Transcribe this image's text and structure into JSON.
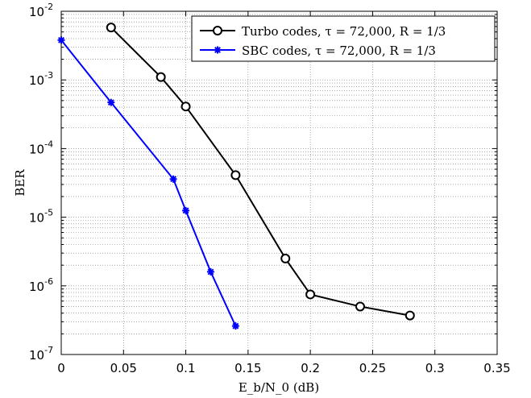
{
  "chart_data": {
    "type": "line",
    "title": "",
    "xlabel": "E_b/N_0 (dB)",
    "ylabel": "BER",
    "xscale": "linear",
    "yscale": "log",
    "xlim": [
      0,
      0.35
    ],
    "ylim": [
      1e-07,
      0.01
    ],
    "grid": true,
    "legend_position": "top-right",
    "x_ticks": [
      "0",
      "0.05",
      "0.1",
      "0.15",
      "0.2",
      "0.25",
      "0.3",
      "0.35"
    ],
    "y_ticks": [
      {
        "base": "10",
        "exp": "-2"
      },
      {
        "base": "10",
        "exp": "-3"
      },
      {
        "base": "10",
        "exp": "-4"
      },
      {
        "base": "10",
        "exp": "-5"
      },
      {
        "base": "10",
        "exp": "-6"
      },
      {
        "base": "10",
        "exp": "-7"
      }
    ],
    "series": [
      {
        "name": "Turbo codes, τ = 72,000, R = 1/3",
        "color": "#000000",
        "marker": "circle",
        "x": [
          0.04,
          0.08,
          0.1,
          0.14,
          0.18,
          0.2,
          0.24,
          0.28
        ],
        "y": [
          0.0058,
          0.0011,
          0.00041,
          4.1e-05,
          2.5e-06,
          7.5e-07,
          5e-07,
          3.7e-07
        ]
      },
      {
        "name": "SBC codes, τ = 72,000, R = 1/3",
        "color": "#0000ff",
        "marker": "star",
        "x": [
          0.0,
          0.04,
          0.09,
          0.1,
          0.12,
          0.14
        ],
        "y": [
          0.0038,
          0.00047,
          3.6e-05,
          1.25e-05,
          1.6e-06,
          2.6e-07
        ]
      }
    ]
  }
}
